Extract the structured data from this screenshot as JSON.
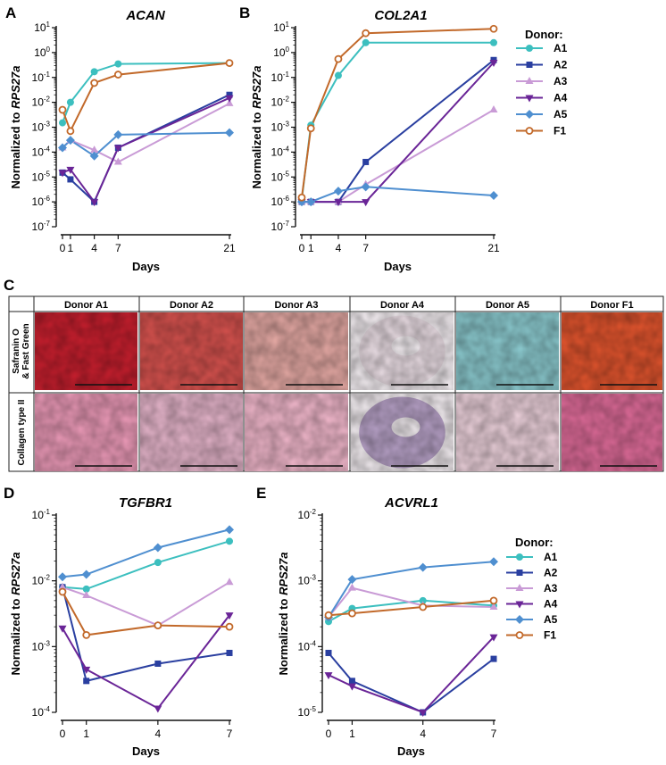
{
  "panels": {
    "A": {
      "letter": "A"
    },
    "B": {
      "letter": "B"
    },
    "C": {
      "letter": "C"
    },
    "D": {
      "letter": "D"
    },
    "E": {
      "letter": "E"
    }
  },
  "legend_top": {
    "title": "Donor:",
    "items": [
      {
        "name": "A1",
        "color": "#3cbfbf",
        "marker": "circle"
      },
      {
        "name": "A2",
        "color": "#2a3fa0",
        "marker": "square"
      },
      {
        "name": "A3",
        "color": "#c99bd6",
        "marker": "triangle-up"
      },
      {
        "name": "A4",
        "color": "#6a2597",
        "marker": "triangle-down"
      },
      {
        "name": "A5",
        "color": "#4f8fd0",
        "marker": "diamond"
      },
      {
        "name": "F1",
        "color": "#c2692a",
        "marker": "open-circle"
      }
    ]
  },
  "legend_bottom": {
    "title": "Donor:",
    "items": [
      {
        "name": "A1",
        "color": "#3cbfbf",
        "marker": "circle"
      },
      {
        "name": "A2",
        "color": "#2a3fa0",
        "marker": "square"
      },
      {
        "name": "A3",
        "color": "#c99bd6",
        "marker": "triangle-up"
      },
      {
        "name": "A4",
        "color": "#6a2597",
        "marker": "triangle-down"
      },
      {
        "name": "A5",
        "color": "#4f8fd0",
        "marker": "diamond"
      },
      {
        "name": "F1",
        "color": "#c2692a",
        "marker": "open-circle"
      }
    ]
  },
  "histology": {
    "donors": [
      "Donor A1",
      "Donor A2",
      "Donor A3",
      "Donor A4",
      "Donor A5",
      "Donor F1"
    ],
    "row_labels": [
      {
        "line1": "Safranin O",
        "line2": "& Fast Green"
      },
      {
        "line1": "Collagen type II",
        "line2": ""
      }
    ],
    "safranin_colors": [
      "#c81f2e",
      "#d9534f",
      "#e5a9a4",
      "#ecdfe6",
      "#8ccbd0",
      "#e3552e"
    ],
    "collagen_colors": [
      "#ec9ab8",
      "#e7b6cc",
      "#f2b8cc",
      "#b8a2c8",
      "#edd2dc",
      "#e06c9a"
    ]
  },
  "chart_data": [
    {
      "id": "A",
      "type": "line",
      "title": "ACAN",
      "xlabel": "Days",
      "ylabel": "Normalized to RPS27a",
      "ylabel_plain": "Normalized to ",
      "ylabel_italic": "RPS27a",
      "yscale": "log",
      "ylim": [
        1e-07,
        10
      ],
      "xlim": [
        0,
        21
      ],
      "xticks": [
        0,
        1,
        4,
        7,
        21
      ],
      "xtick_labels": [
        "0",
        "1",
        "4",
        "7",
        "21"
      ],
      "yticks": [
        1e-07,
        1e-06,
        1e-05,
        0.0001,
        0.001,
        0.01,
        0.1,
        1,
        10
      ],
      "ytick_exps": [
        "-7",
        "-6",
        "-5",
        "-4",
        "-3",
        "-2",
        "-1",
        "0",
        "1"
      ],
      "series": [
        {
          "name": "A1",
          "x": [
            0,
            1,
            4,
            7,
            21
          ],
          "values": [
            0.0015,
            0.01,
            0.17,
            0.35,
            0.38
          ]
        },
        {
          "name": "A2",
          "x": [
            0,
            1,
            4,
            7,
            21
          ],
          "values": [
            1.5e-05,
            8e-06,
            1e-06,
            0.00015,
            0.02
          ]
        },
        {
          "name": "A3",
          "x": [
            0,
            1,
            4,
            7,
            21
          ],
          "values": [
            0.00015,
            0.0003,
            0.00012,
            4e-05,
            0.009
          ]
        },
        {
          "name": "A4",
          "x": [
            0,
            1,
            4,
            7,
            21
          ],
          "values": [
            1.5e-05,
            2e-05,
            1e-06,
            0.00015,
            0.015
          ]
        },
        {
          "name": "A5",
          "x": [
            0,
            1,
            4,
            7,
            21
          ],
          "values": [
            0.00015,
            0.0003,
            7e-05,
            0.0005,
            0.0006
          ]
        },
        {
          "name": "F1",
          "x": [
            0,
            1,
            4,
            7,
            21
          ],
          "values": [
            0.005,
            0.0007,
            0.06,
            0.13,
            0.38
          ]
        }
      ]
    },
    {
      "id": "B",
      "type": "line",
      "title": "COL2A1",
      "xlabel": "Days",
      "ylabel": "Normalized to RPS27a",
      "ylabel_plain": "Normalized to ",
      "ylabel_italic": "RPS27a",
      "yscale": "log",
      "ylim": [
        1e-07,
        10
      ],
      "xlim": [
        0,
        21
      ],
      "xticks": [
        0,
        1,
        4,
        7,
        21
      ],
      "xtick_labels": [
        "0",
        "1",
        "4",
        "7",
        "21"
      ],
      "yticks": [
        1e-07,
        1e-06,
        1e-05,
        0.0001,
        0.001,
        0.01,
        0.1,
        1,
        10
      ],
      "ytick_exps": [
        "-7",
        "-6",
        "-5",
        "-4",
        "-3",
        "-2",
        "-1",
        "0",
        "1"
      ],
      "series": [
        {
          "name": "A1",
          "x": [
            0,
            1,
            4,
            7,
            21
          ],
          "values": [
            1.2e-06,
            0.0012,
            0.12,
            2.5,
            2.5
          ]
        },
        {
          "name": "A2",
          "x": [
            0,
            1,
            4,
            7,
            21
          ],
          "values": [
            1e-06,
            1e-06,
            1e-06,
            4e-05,
            0.5
          ]
        },
        {
          "name": "A3",
          "x": [
            0,
            1,
            4,
            7,
            21
          ],
          "values": [
            1e-06,
            1e-06,
            1e-06,
            5e-06,
            0.005
          ]
        },
        {
          "name": "A4",
          "x": [
            0,
            1,
            4,
            7,
            21
          ],
          "values": [
            1e-06,
            1e-06,
            1e-06,
            1e-06,
            0.4
          ]
        },
        {
          "name": "A5",
          "x": [
            0,
            1,
            4,
            7,
            21
          ],
          "values": [
            1e-06,
            1e-06,
            2.7e-06,
            4e-06,
            1.8e-06
          ]
        },
        {
          "name": "F1",
          "x": [
            0,
            1,
            4,
            7,
            21
          ],
          "values": [
            1.5e-06,
            0.0009,
            0.55,
            6.0,
            9.0
          ]
        }
      ]
    },
    {
      "id": "D",
      "type": "line",
      "title": "TGFBR1",
      "xlabel": "Days",
      "ylabel": "Normalized to RPS27a",
      "ylabel_plain": "Normalized to ",
      "ylabel_italic": "RPS27a",
      "yscale": "log",
      "ylim": [
        0.0001,
        0.1
      ],
      "xlim": [
        0,
        7
      ],
      "xticks": [
        0,
        1,
        4,
        7
      ],
      "xtick_labels": [
        "0",
        "1",
        "4",
        "7"
      ],
      "yticks": [
        0.0001,
        0.001,
        0.01,
        0.1
      ],
      "ytick_exps": [
        "-4",
        "-3",
        "-2",
        "-1"
      ],
      "series": [
        {
          "name": "A1",
          "x": [
            0,
            1,
            4,
            7
          ],
          "values": [
            0.008,
            0.0075,
            0.019,
            0.04
          ]
        },
        {
          "name": "A2",
          "x": [
            0,
            1,
            4,
            7
          ],
          "values": [
            0.008,
            0.0003,
            0.00055,
            0.0008
          ]
        },
        {
          "name": "A3",
          "x": [
            0,
            1,
            4,
            7
          ],
          "values": [
            0.008,
            0.006,
            0.0021,
            0.0095
          ]
        },
        {
          "name": "A4",
          "x": [
            0,
            1,
            4,
            7
          ],
          "values": [
            0.0019,
            0.00045,
            0.000115,
            0.003
          ]
        },
        {
          "name": "A5",
          "x": [
            0,
            1,
            4,
            7
          ],
          "values": [
            0.0115,
            0.0125,
            0.032,
            0.06
          ]
        },
        {
          "name": "F1",
          "x": [
            0,
            1,
            4,
            7
          ],
          "values": [
            0.0068,
            0.0015,
            0.0021,
            0.002
          ]
        }
      ]
    },
    {
      "id": "E",
      "type": "line",
      "title": "ACVRL1",
      "xlabel": "Days",
      "ylabel": "Normalized to RPS27a",
      "ylabel_plain": "Normalized to ",
      "ylabel_italic": "RPS27a",
      "yscale": "log",
      "ylim": [
        1e-05,
        0.01
      ],
      "xlim": [
        0,
        7
      ],
      "xticks": [
        0,
        1,
        4,
        7
      ],
      "xtick_labels": [
        "0",
        "1",
        "4",
        "7"
      ],
      "yticks": [
        1e-05,
        0.0001,
        0.001,
        0.01
      ],
      "ytick_exps": [
        "-5",
        "-4",
        "-3",
        "-2"
      ],
      "series": [
        {
          "name": "A1",
          "x": [
            0,
            1,
            4,
            7
          ],
          "values": [
            0.00024,
            0.00038,
            0.0005,
            0.00042
          ]
        },
        {
          "name": "A2",
          "x": [
            0,
            1,
            4,
            7
          ],
          "values": [
            8e-05,
            3e-05,
            1e-05,
            6.5e-05
          ]
        },
        {
          "name": "A3",
          "x": [
            0,
            1,
            4,
            7
          ],
          "values": [
            0.00028,
            0.00078,
            0.00042,
            0.0004
          ]
        },
        {
          "name": "A4",
          "x": [
            0,
            1,
            4,
            7
          ],
          "values": [
            3.7e-05,
            2.5e-05,
            1e-05,
            0.00014
          ]
        },
        {
          "name": "A5",
          "x": [
            0,
            1,
            4,
            7
          ],
          "values": [
            0.00028,
            0.00105,
            0.0016,
            0.00195
          ]
        },
        {
          "name": "F1",
          "x": [
            0,
            1,
            4,
            7
          ],
          "values": [
            0.0003,
            0.00032,
            0.0004,
            0.0005
          ]
        }
      ]
    }
  ]
}
